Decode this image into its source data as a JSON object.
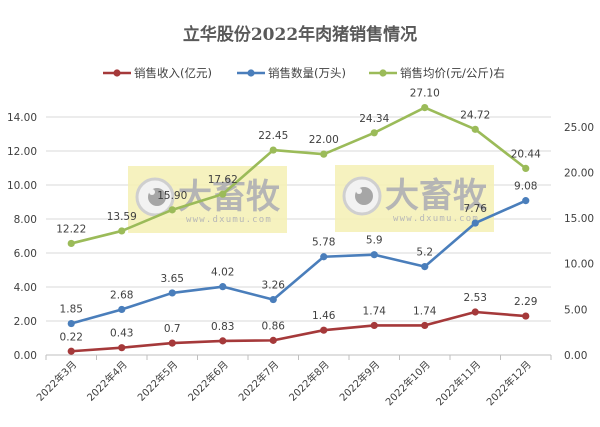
{
  "chart_data": {
    "type": "line",
    "title": "立华股份2022年肉猪销售情况",
    "categories": [
      "2022年3月",
      "2022年4月",
      "2022年5月",
      "2022年6月",
      "2022年7月",
      "2022年8月",
      "2022年9月",
      "2022年10月",
      "2022年11月",
      "2022年12月"
    ],
    "series": [
      {
        "name": "销售收入(亿元)",
        "axis": "left",
        "color": "#A5393A",
        "values": [
          0.22,
          0.43,
          0.7,
          0.83,
          0.86,
          1.46,
          1.74,
          1.74,
          2.53,
          2.29
        ],
        "labels": [
          "0.22",
          "0.43",
          "0.7",
          "0.83",
          "0.86",
          "1.46",
          "1.74",
          "1.74",
          "2.53",
          "2.29"
        ]
      },
      {
        "name": "销售数量(万头)",
        "axis": "left",
        "color": "#4A7EBB",
        "values": [
          1.85,
          2.68,
          3.65,
          4.02,
          3.26,
          5.78,
          5.9,
          5.2,
          7.76,
          9.08
        ],
        "labels": [
          "1.85",
          "2.68",
          "3.65",
          "4.02",
          "3.26",
          "5.78",
          "5.9",
          "5.2",
          "7.76",
          "9.08"
        ]
      },
      {
        "name": "销售均价(元/公斤)右",
        "axis": "right",
        "color": "#9BBB59",
        "values": [
          12.22,
          13.59,
          15.9,
          17.62,
          22.45,
          22.0,
          24.34,
          27.1,
          24.72,
          20.44
        ],
        "labels": [
          "12.22",
          "13.59",
          "15.90",
          "17.62",
          "22.45",
          "22.00",
          "24.34",
          "27.10",
          "24.72",
          "20.44"
        ]
      }
    ],
    "left_axis": {
      "ticks": [
        "0.00",
        "2.00",
        "4.00",
        "6.00",
        "8.00",
        "10.00",
        "12.00",
        "14.00"
      ],
      "min": 0,
      "max": 14
    },
    "right_axis": {
      "ticks": [
        "0.00",
        "5.00",
        "10.00",
        "15.00",
        "20.00",
        "25.00"
      ],
      "min": 0,
      "max": 26.07
    },
    "xlabel": "",
    "ylabel": "",
    "grid": true,
    "legend_position": "top"
  },
  "watermark": {
    "brand": "大畜牧",
    "url": "www.dxumu.com"
  }
}
